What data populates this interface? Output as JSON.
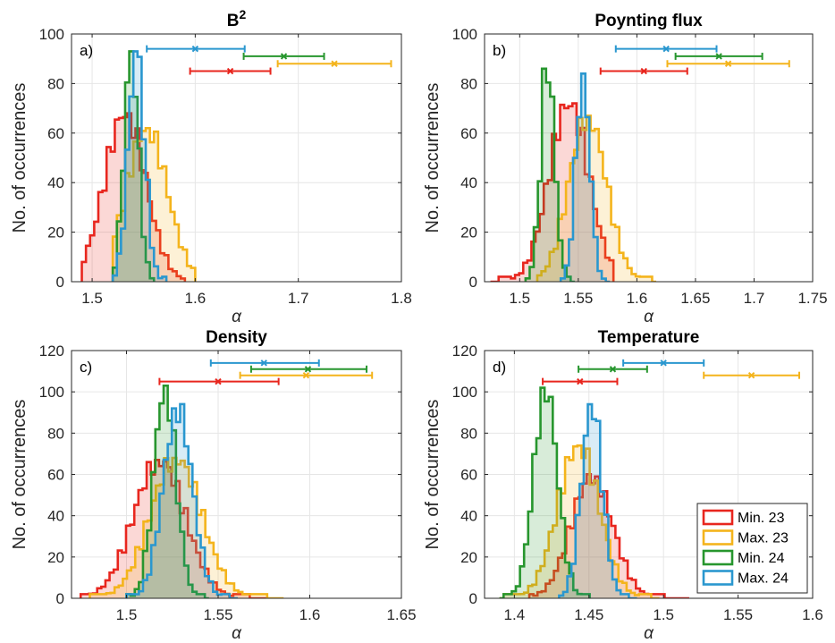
{
  "colors": {
    "min23": "#e8261e",
    "max23": "#f4b41c",
    "min24": "#27962e",
    "max24": "#2a97cf",
    "grid": "#e6e6e6",
    "axis": "#262626"
  },
  "legend": {
    "placement": "bottom-right of panel d",
    "entries": [
      "Min. 23",
      "Max. 23",
      "Min. 24",
      "Max. 24"
    ]
  },
  "chart_data": [
    {
      "type": "histogram",
      "panel_label": "a)",
      "title_base": "B",
      "title_sup": "2",
      "xlabel": "α",
      "ylabel": "No. of occurrences",
      "xlim": [
        1.48,
        1.8
      ],
      "ylim": [
        0,
        100
      ],
      "xticks": [
        1.5,
        1.6,
        1.7,
        1.8
      ],
      "xtick_labels": [
        "1.5",
        "1.6",
        "1.7",
        "1.8"
      ],
      "yticks": [
        0,
        20,
        40,
        60,
        80,
        100
      ],
      "ytick_labels": [
        "0",
        "20",
        "40",
        "60",
        "80",
        "100"
      ],
      "grid": true,
      "series": [
        {
          "name": "Min. 23",
          "mu": 1.532,
          "sigma": 0.02,
          "peak": 68,
          "range": [
            1.49,
            1.59
          ]
        },
        {
          "name": "Max. 23",
          "mu": 1.553,
          "sigma": 0.02,
          "peak": 62,
          "range": [
            1.52,
            1.6
          ]
        },
        {
          "name": "Min. 24",
          "mu": 1.538,
          "sigma": 0.007,
          "peak": 93,
          "range": [
            1.52,
            1.56
          ]
        },
        {
          "name": "Max. 24",
          "mu": 1.543,
          "sigma": 0.008,
          "peak": 93,
          "range": [
            1.52,
            1.57
          ]
        }
      ],
      "error_bars": [
        {
          "name": "Max. 24",
          "y": 94,
          "lo": 1.553,
          "center": 1.6,
          "hi": 1.648
        },
        {
          "name": "Min. 24",
          "y": 91,
          "lo": 1.647,
          "center": 1.686,
          "hi": 1.725
        },
        {
          "name": "Max. 23",
          "y": 88,
          "lo": 1.68,
          "center": 1.735,
          "hi": 1.79
        },
        {
          "name": "Min. 23",
          "y": 85,
          "lo": 1.595,
          "center": 1.634,
          "hi": 1.673
        }
      ]
    },
    {
      "type": "histogram",
      "panel_label": "b)",
      "title_base": "Poynting flux",
      "title_sup": "",
      "xlabel": "α",
      "ylabel": "No. of occurrences",
      "xlim": [
        1.47,
        1.75
      ],
      "ylim": [
        0,
        100
      ],
      "xticks": [
        1.5,
        1.55,
        1.6,
        1.65,
        1.7,
        1.75
      ],
      "xtick_labels": [
        "1.5",
        "1.55",
        "1.6",
        "1.65",
        "1.7",
        "1.75"
      ],
      "yticks": [
        0,
        20,
        40,
        60,
        80,
        100
      ],
      "ytick_labels": [
        "0",
        "20",
        "40",
        "60",
        "80",
        "100"
      ],
      "grid": true,
      "series": [
        {
          "name": "Min. 23",
          "mu": 1.542,
          "sigma": 0.017,
          "peak": 72,
          "range": [
            1.475,
            1.58
          ]
        },
        {
          "name": "Max. 23",
          "mu": 1.558,
          "sigma": 0.016,
          "peak": 67,
          "range": [
            1.515,
            1.615
          ]
        },
        {
          "name": "Min. 24",
          "mu": 1.524,
          "sigma": 0.006,
          "peak": 86,
          "range": [
            1.505,
            1.545
          ]
        },
        {
          "name": "Max. 24",
          "mu": 1.554,
          "sigma": 0.006,
          "peak": 84,
          "range": [
            1.535,
            1.575
          ]
        }
      ],
      "error_bars": [
        {
          "name": "Max. 24",
          "y": 94,
          "lo": 1.582,
          "center": 1.625,
          "hi": 1.668
        },
        {
          "name": "Min. 24",
          "y": 91,
          "lo": 1.633,
          "center": 1.67,
          "hi": 1.707
        },
        {
          "name": "Max. 23",
          "y": 88,
          "lo": 1.626,
          "center": 1.678,
          "hi": 1.73
        },
        {
          "name": "Min. 23",
          "y": 85,
          "lo": 1.569,
          "center": 1.606,
          "hi": 1.643
        }
      ]
    },
    {
      "type": "histogram",
      "panel_label": "c)",
      "title_base": "Density",
      "title_sup": "",
      "xlabel": "α",
      "ylabel": "No. of occurrences",
      "xlim": [
        1.47,
        1.65
      ],
      "ylim": [
        0,
        120
      ],
      "xticks": [
        1.5,
        1.55,
        1.6,
        1.65
      ],
      "xtick_labels": [
        "1.5",
        "1.55",
        "1.6",
        "1.65"
      ],
      "yticks": [
        0,
        20,
        40,
        60,
        80,
        100,
        120
      ],
      "ytick_labels": [
        "0",
        "20",
        "40",
        "60",
        "80",
        "100",
        "120"
      ],
      "grid": true,
      "series": [
        {
          "name": "Min. 23",
          "mu": 1.518,
          "sigma": 0.014,
          "peak": 67,
          "range": [
            1.475,
            1.575
          ]
        },
        {
          "name": "Max. 23",
          "mu": 1.527,
          "sigma": 0.014,
          "peak": 68,
          "range": [
            1.48,
            1.585
          ]
        },
        {
          "name": "Min. 24",
          "mu": 1.521,
          "sigma": 0.006,
          "peak": 103,
          "range": [
            1.5,
            1.545
          ]
        },
        {
          "name": "Max. 24",
          "mu": 1.528,
          "sigma": 0.008,
          "peak": 92,
          "range": [
            1.5,
            1.56
          ]
        }
      ],
      "error_bars": [
        {
          "name": "Max. 24",
          "y": 114,
          "lo": 1.546,
          "center": 1.575,
          "hi": 1.605
        },
        {
          "name": "Min. 24",
          "y": 111,
          "lo": 1.568,
          "center": 1.599,
          "hi": 1.631
        },
        {
          "name": "Max. 23",
          "y": 108,
          "lo": 1.562,
          "center": 1.598,
          "hi": 1.634
        },
        {
          "name": "Min. 23",
          "y": 105,
          "lo": 1.518,
          "center": 1.55,
          "hi": 1.583
        }
      ]
    },
    {
      "type": "histogram",
      "panel_label": "d)",
      "title_base": "Temperature",
      "title_sup": "",
      "xlabel": "α",
      "ylabel": "No. of occurrences",
      "xlim": [
        1.38,
        1.6
      ],
      "ylim": [
        0,
        120
      ],
      "xticks": [
        1.4,
        1.45,
        1.5,
        1.55,
        1.6
      ],
      "xtick_labels": [
        "1.4",
        "1.45",
        "1.5",
        "1.55",
        "1.6"
      ],
      "yticks": [
        0,
        20,
        40,
        60,
        80,
        100,
        120
      ],
      "ytick_labels": [
        "0",
        "20",
        "40",
        "60",
        "80",
        "100",
        "120"
      ],
      "grid": true,
      "series": [
        {
          "name": "Min. 23",
          "mu": 1.452,
          "sigma": 0.014,
          "peak": 59,
          "range": [
            1.41,
            1.515
          ]
        },
        {
          "name": "Max. 23",
          "mu": 1.443,
          "sigma": 0.014,
          "peak": 74,
          "range": [
            1.39,
            1.495
          ]
        },
        {
          "name": "Min. 24",
          "mu": 1.421,
          "sigma": 0.008,
          "peak": 102,
          "range": [
            1.39,
            1.45
          ]
        },
        {
          "name": "Max. 24",
          "mu": 1.452,
          "sigma": 0.007,
          "peak": 94,
          "range": [
            1.43,
            1.48
          ]
        }
      ],
      "error_bars": [
        {
          "name": "Max. 24",
          "y": 114,
          "lo": 1.473,
          "center": 1.5,
          "hi": 1.527
        },
        {
          "name": "Min. 24",
          "y": 111,
          "lo": 1.443,
          "center": 1.466,
          "hi": 1.489
        },
        {
          "name": "Max. 23",
          "y": 108,
          "lo": 1.527,
          "center": 1.559,
          "hi": 1.591
        },
        {
          "name": "Min. 23",
          "y": 105,
          "lo": 1.419,
          "center": 1.444,
          "hi": 1.469
        }
      ]
    }
  ]
}
